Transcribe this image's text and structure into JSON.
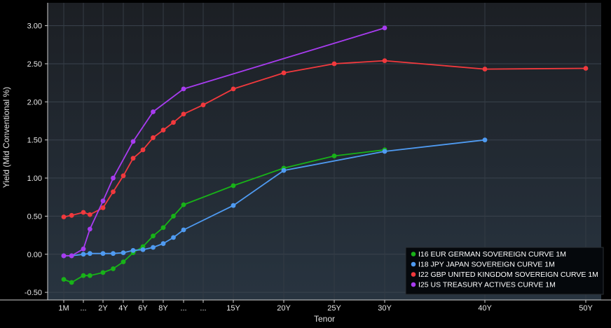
{
  "chart_data": {
    "type": "line",
    "xlabel": "Tenor",
    "ylabel": "Yield (Mid Conventional %)",
    "ylim": [
      -0.6,
      3.3
    ],
    "y_ticks": [
      -0.5,
      0.0,
      0.5,
      1.0,
      1.5,
      2.0,
      2.5,
      3.0
    ],
    "y_tick_labels": [
      "-0.50",
      "0.00",
      "0.50",
      "1.00",
      "1.50",
      "2.00",
      "2.50",
      "3.00"
    ],
    "grid": true,
    "legend_position": "bottom-right",
    "x_ticks": [
      {
        "label": "1M",
        "x": 0.083
      },
      {
        "label": "...",
        "x": 0.5
      },
      {
        "label": "2Y",
        "x": 2
      },
      {
        "label": "4Y",
        "x": 4
      },
      {
        "label": "6Y",
        "x": 6
      },
      {
        "label": "8Y",
        "x": 8
      },
      {
        "label": "...",
        "x": 10
      },
      {
        "label": "...",
        "x": 12
      },
      {
        "label": "15Y",
        "x": 15
      },
      {
        "label": "20Y",
        "x": 20
      },
      {
        "label": "25Y",
        "x": 25
      },
      {
        "label": "30Y",
        "x": 30
      },
      {
        "label": "40Y",
        "x": 40
      },
      {
        "label": "50Y",
        "x": 50
      }
    ],
    "series": [
      {
        "name": "I16 EUR GERMAN SOVEREIGN CURVE 1M",
        "color": "#18b218",
        "points": [
          {
            "x": 0.083,
            "y": -0.33
          },
          {
            "x": 0.25,
            "y": -0.37
          },
          {
            "x": 0.5,
            "y": -0.28
          },
          {
            "x": 1,
            "y": -0.28
          },
          {
            "x": 2,
            "y": -0.24
          },
          {
            "x": 3,
            "y": -0.19
          },
          {
            "x": 4,
            "y": -0.1
          },
          {
            "x": 5,
            "y": 0.02
          },
          {
            "x": 6,
            "y": 0.1
          },
          {
            "x": 7,
            "y": 0.24
          },
          {
            "x": 8,
            "y": 0.35
          },
          {
            "x": 9,
            "y": 0.5
          },
          {
            "x": 10,
            "y": 0.65
          },
          {
            "x": 15,
            "y": 0.9
          },
          {
            "x": 20,
            "y": 1.13
          },
          {
            "x": 25,
            "y": 1.29
          },
          {
            "x": 30,
            "y": 1.37
          }
        ]
      },
      {
        "name": "I18 JPY JAPAN SOVEREIGN CURVE 1M",
        "color": "#4f9bf2",
        "points": [
          {
            "x": 0.083,
            "y": -0.02
          },
          {
            "x": 0.25,
            "y": -0.02
          },
          {
            "x": 0.5,
            "y": 0.0
          },
          {
            "x": 1,
            "y": 0.01
          },
          {
            "x": 2,
            "y": 0.01
          },
          {
            "x": 3,
            "y": 0.01
          },
          {
            "x": 4,
            "y": 0.02
          },
          {
            "x": 5,
            "y": 0.05
          },
          {
            "x": 6,
            "y": 0.06
          },
          {
            "x": 7,
            "y": 0.09
          },
          {
            "x": 8,
            "y": 0.14
          },
          {
            "x": 9,
            "y": 0.22
          },
          {
            "x": 10,
            "y": 0.32
          },
          {
            "x": 15,
            "y": 0.64
          },
          {
            "x": 20,
            "y": 1.1
          },
          {
            "x": 30,
            "y": 1.35
          },
          {
            "x": 40,
            "y": 1.5
          }
        ]
      },
      {
        "name": "I22 GBP UNITED KINGDOM SOVEREIGN CURVE 1M",
        "color": "#f2393d",
        "points": [
          {
            "x": 0.083,
            "y": 0.49
          },
          {
            "x": 0.25,
            "y": 0.51
          },
          {
            "x": 0.5,
            "y": 0.55
          },
          {
            "x": 1,
            "y": 0.52
          },
          {
            "x": 2,
            "y": 0.61
          },
          {
            "x": 3,
            "y": 0.82
          },
          {
            "x": 4,
            "y": 1.03
          },
          {
            "x": 5,
            "y": 1.26
          },
          {
            "x": 6,
            "y": 1.37
          },
          {
            "x": 7,
            "y": 1.53
          },
          {
            "x": 8,
            "y": 1.63
          },
          {
            "x": 9,
            "y": 1.73
          },
          {
            "x": 10,
            "y": 1.84
          },
          {
            "x": 12,
            "y": 1.96
          },
          {
            "x": 15,
            "y": 2.17
          },
          {
            "x": 20,
            "y": 2.38
          },
          {
            "x": 25,
            "y": 2.5
          },
          {
            "x": 30,
            "y": 2.54
          },
          {
            "x": 40,
            "y": 2.43
          },
          {
            "x": 50,
            "y": 2.44
          }
        ]
      },
      {
        "name": "I25 US TREASURY ACTIVES CURVE 1M",
        "color": "#a83cf0",
        "points": [
          {
            "x": 0.083,
            "y": -0.02
          },
          {
            "x": 0.25,
            "y": -0.02
          },
          {
            "x": 0.5,
            "y": 0.07
          },
          {
            "x": 1,
            "y": 0.33
          },
          {
            "x": 2,
            "y": 0.7
          },
          {
            "x": 3,
            "y": 1.0
          },
          {
            "x": 5,
            "y": 1.48
          },
          {
            "x": 7,
            "y": 1.87
          },
          {
            "x": 10,
            "y": 2.17
          },
          {
            "x": 30,
            "y": 2.97
          }
        ]
      }
    ]
  }
}
